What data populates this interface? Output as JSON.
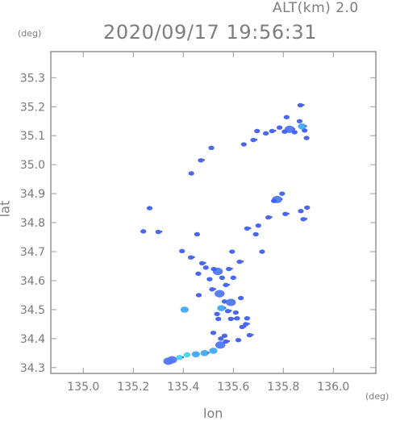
{
  "header": {
    "alt_label": "ALT(km)  2.0",
    "datetime": "2020/09/17 19:56:31"
  },
  "axes": {
    "y_unit": "(deg)",
    "x_unit": "(deg)",
    "x_label": "lon",
    "y_label": "lat"
  },
  "map": {
    "xlim": [
      134.87,
      136.17
    ],
    "ylim": [
      34.28,
      35.39
    ],
    "x_ticks": [
      135.0,
      135.2,
      135.4,
      135.6,
      135.8,
      136.0
    ],
    "y_ticks": [
      34.3,
      34.4,
      34.5,
      34.6,
      34.7,
      34.8,
      34.9,
      35.0,
      35.1,
      35.2,
      35.3
    ],
    "x_tick_labels": [
      "135.0",
      "135.2",
      "135.4",
      "135.6",
      "135.8",
      "136.0"
    ],
    "y_tick_labels": [
      "34.3",
      "34.4",
      "34.5",
      "34.6",
      "34.7",
      "34.8",
      "34.9",
      "35.0",
      "35.1",
      "35.2",
      "35.3"
    ],
    "colors": {
      "frame": "#8a8a8a",
      "grid": "#9a9a9a",
      "echo_dark": "#3f5ff0",
      "echo_mid": "#4f77f6",
      "echo_light": "#44a8f2",
      "echo_cyan": "#45d2f0"
    },
    "echo_cells": [
      {
        "lon": 135.825,
        "lat": 35.122,
        "intensity": "mid"
      },
      {
        "lon": 135.805,
        "lat": 35.114,
        "intensity": "dark"
      },
      {
        "lon": 135.845,
        "lat": 35.112,
        "intensity": "dark"
      },
      {
        "lon": 135.875,
        "lat": 35.132,
        "intensity": "light"
      },
      {
        "lon": 135.865,
        "lat": 35.15,
        "intensity": "dark"
      },
      {
        "lon": 135.885,
        "lat": 35.118,
        "intensity": "dark"
      },
      {
        "lon": 135.868,
        "lat": 35.205,
        "intensity": "dark"
      },
      {
        "lon": 135.893,
        "lat": 35.092,
        "intensity": "dark"
      },
      {
        "lon": 135.73,
        "lat": 35.108,
        "intensity": "dark"
      },
      {
        "lon": 135.755,
        "lat": 35.116,
        "intensity": "dark"
      },
      {
        "lon": 135.695,
        "lat": 35.116,
        "intensity": "dark"
      },
      {
        "lon": 135.785,
        "lat": 35.128,
        "intensity": "dark"
      },
      {
        "lon": 135.68,
        "lat": 35.085,
        "intensity": "dark"
      },
      {
        "lon": 135.642,
        "lat": 35.07,
        "intensity": "dark"
      },
      {
        "lon": 135.813,
        "lat": 35.164,
        "intensity": "dark"
      },
      {
        "lon": 135.552,
        "lat": 34.505,
        "intensity": "light"
      },
      {
        "lon": 135.565,
        "lat": 34.528,
        "intensity": "dark"
      },
      {
        "lon": 135.545,
        "lat": 34.555,
        "intensity": "mid"
      },
      {
        "lon": 135.578,
        "lat": 34.495,
        "intensity": "dark"
      },
      {
        "lon": 135.59,
        "lat": 34.525,
        "intensity": "mid"
      },
      {
        "lon": 135.535,
        "lat": 34.485,
        "intensity": "dark"
      },
      {
        "lon": 135.57,
        "lat": 34.585,
        "intensity": "dark"
      },
      {
        "lon": 135.555,
        "lat": 34.61,
        "intensity": "dark"
      },
      {
        "lon": 135.538,
        "lat": 34.632,
        "intensity": "mid"
      },
      {
        "lon": 135.582,
        "lat": 34.64,
        "intensity": "dark"
      },
      {
        "lon": 135.522,
        "lat": 34.64,
        "intensity": "dark"
      },
      {
        "lon": 135.6,
        "lat": 34.61,
        "intensity": "dark"
      },
      {
        "lon": 135.625,
        "lat": 34.665,
        "intensity": "dark"
      },
      {
        "lon": 135.63,
        "lat": 34.54,
        "intensity": "dark"
      },
      {
        "lon": 135.61,
        "lat": 34.49,
        "intensity": "dark"
      },
      {
        "lon": 135.515,
        "lat": 34.57,
        "intensity": "dark"
      },
      {
        "lon": 135.505,
        "lat": 34.605,
        "intensity": "dark"
      },
      {
        "lon": 135.49,
        "lat": 34.645,
        "intensity": "dark"
      },
      {
        "lon": 135.475,
        "lat": 34.66,
        "intensity": "dark"
      },
      {
        "lon": 135.46,
        "lat": 34.624,
        "intensity": "dark"
      },
      {
        "lon": 135.462,
        "lat": 34.55,
        "intensity": "dark"
      },
      {
        "lon": 135.43,
        "lat": 34.68,
        "intensity": "dark"
      },
      {
        "lon": 135.405,
        "lat": 34.5,
        "intensity": "light"
      },
      {
        "lon": 135.54,
        "lat": 34.468,
        "intensity": "dark"
      },
      {
        "lon": 135.59,
        "lat": 34.468,
        "intensity": "dark"
      },
      {
        "lon": 135.615,
        "lat": 34.47,
        "intensity": "dark"
      },
      {
        "lon": 135.655,
        "lat": 34.47,
        "intensity": "dark"
      },
      {
        "lon": 135.635,
        "lat": 34.44,
        "intensity": "dark"
      },
      {
        "lon": 135.548,
        "lat": 34.378,
        "intensity": "mid"
      },
      {
        "lon": 135.52,
        "lat": 34.358,
        "intensity": "light"
      },
      {
        "lon": 135.485,
        "lat": 34.35,
        "intensity": "light"
      },
      {
        "lon": 135.45,
        "lat": 34.346,
        "intensity": "light"
      },
      {
        "lon": 135.415,
        "lat": 34.344,
        "intensity": "cyan"
      },
      {
        "lon": 135.385,
        "lat": 34.335,
        "intensity": "cyan"
      },
      {
        "lon": 135.355,
        "lat": 34.327,
        "intensity": "mid"
      },
      {
        "lon": 135.34,
        "lat": 34.322,
        "intensity": "mid"
      },
      {
        "lon": 135.665,
        "lat": 34.412,
        "intensity": "dark"
      },
      {
        "lon": 135.565,
        "lat": 34.41,
        "intensity": "dark"
      },
      {
        "lon": 135.52,
        "lat": 34.42,
        "intensity": "dark"
      },
      {
        "lon": 135.775,
        "lat": 34.88,
        "intensity": "mid"
      },
      {
        "lon": 135.762,
        "lat": 34.875,
        "intensity": "dark"
      },
      {
        "lon": 135.795,
        "lat": 34.9,
        "intensity": "dark"
      },
      {
        "lon": 135.74,
        "lat": 34.818,
        "intensity": "dark"
      },
      {
        "lon": 135.7,
        "lat": 34.79,
        "intensity": "dark"
      },
      {
        "lon": 135.715,
        "lat": 34.7,
        "intensity": "dark"
      },
      {
        "lon": 135.808,
        "lat": 34.83,
        "intensity": "dark"
      },
      {
        "lon": 135.87,
        "lat": 34.84,
        "intensity": "dark"
      },
      {
        "lon": 135.895,
        "lat": 34.852,
        "intensity": "dark"
      },
      {
        "lon": 135.88,
        "lat": 34.812,
        "intensity": "dark"
      },
      {
        "lon": 135.265,
        "lat": 34.85,
        "intensity": "dark"
      },
      {
        "lon": 135.24,
        "lat": 34.77,
        "intensity": "dark"
      },
      {
        "lon": 135.3,
        "lat": 34.768,
        "intensity": "dark"
      },
      {
        "lon": 135.455,
        "lat": 34.76,
        "intensity": "dark"
      },
      {
        "lon": 135.395,
        "lat": 34.702,
        "intensity": "dark"
      },
      {
        "lon": 135.47,
        "lat": 35.015,
        "intensity": "dark"
      },
      {
        "lon": 135.512,
        "lat": 35.058,
        "intensity": "dark"
      },
      {
        "lon": 135.432,
        "lat": 34.97,
        "intensity": "dark"
      },
      {
        "lon": 135.655,
        "lat": 34.78,
        "intensity": "dark"
      },
      {
        "lon": 135.69,
        "lat": 34.76,
        "intensity": "dark"
      },
      {
        "lon": 135.595,
        "lat": 34.7,
        "intensity": "dark"
      },
      {
        "lon": 135.57,
        "lat": 34.39,
        "intensity": "dark"
      },
      {
        "lon": 135.55,
        "lat": 34.4,
        "intensity": "dark"
      },
      {
        "lon": 135.62,
        "lat": 34.395,
        "intensity": "dark"
      },
      {
        "lon": 135.65,
        "lat": 34.45,
        "intensity": "dark"
      }
    ]
  }
}
